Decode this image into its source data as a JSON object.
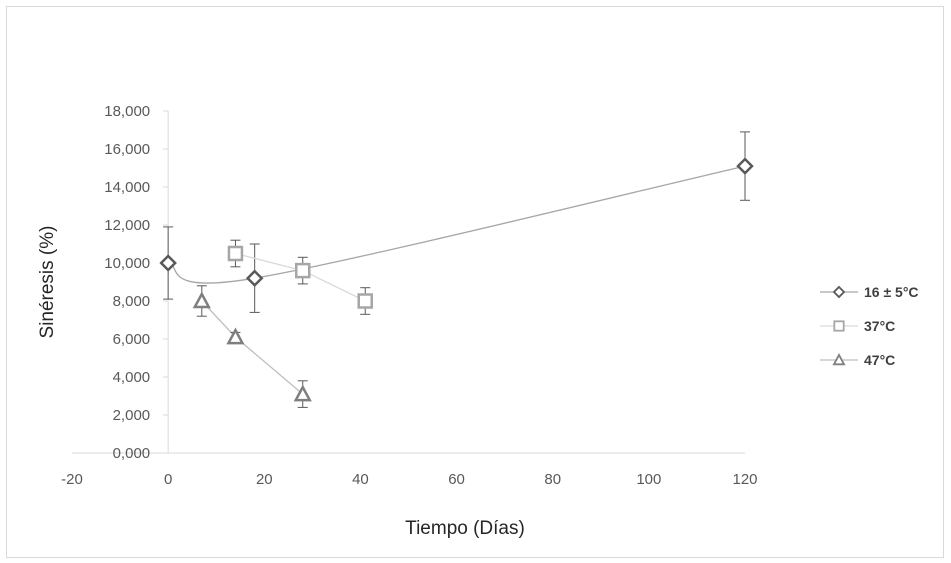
{
  "chart_data": {
    "type": "scatter",
    "title": "",
    "xlabel": "Tiempo (Días)",
    "ylabel": "Sinéresis (%)",
    "xlim": [
      -20,
      120
    ],
    "ylim": [
      0,
      18000
    ],
    "x_ticks": [
      -20,
      0,
      20,
      40,
      60,
      80,
      100,
      120
    ],
    "x_tick_labels": [
      "-20",
      "0",
      "20",
      "40",
      "60",
      "80",
      "100",
      "120"
    ],
    "y_ticks": [
      0,
      2000,
      4000,
      6000,
      8000,
      10000,
      12000,
      14000,
      16000,
      18000
    ],
    "y_tick_labels": [
      "0,000",
      "2,000",
      "4,000",
      "6,000",
      "8,000",
      "10,000",
      "12,000",
      "14,000",
      "16,000",
      "18,000"
    ],
    "grid": false,
    "legend_position": "right",
    "series": [
      {
        "name": "16 ± 5°C",
        "marker": "diamond",
        "color": "#595959",
        "line_color": "#a6a6a6",
        "smooth": true,
        "points": [
          {
            "x": 0,
            "y": 10000,
            "err": 1900
          },
          {
            "x": 18,
            "y": 9200,
            "err": 1800
          },
          {
            "x": 120,
            "y": 15100,
            "err": 1800
          }
        ]
      },
      {
        "name": "37°C",
        "marker": "square",
        "color": "#a6a6a6",
        "line_color": "#d9d9d9",
        "smooth": false,
        "points": [
          {
            "x": 14,
            "y": 10500,
            "err": 700
          },
          {
            "x": 28,
            "y": 9600,
            "err": 700
          },
          {
            "x": 41,
            "y": 8000,
            "err": 700
          }
        ]
      },
      {
        "name": "47°C",
        "marker": "triangle",
        "color": "#7f7f7f",
        "line_color": "#bfbfbf",
        "smooth": false,
        "points": [
          {
            "x": 7,
            "y": 8000,
            "err": 800
          },
          {
            "x": 14,
            "y": 6100,
            "err": 250
          },
          {
            "x": 28,
            "y": 3100,
            "err": 700
          }
        ]
      }
    ]
  }
}
